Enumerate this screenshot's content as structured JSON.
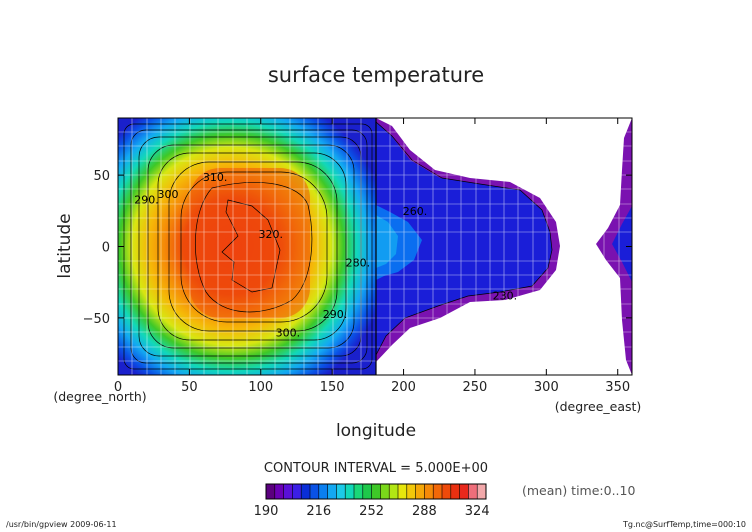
{
  "chart_data": {
    "type": "heatmap",
    "title": "surface temperature",
    "xlabel": "longitude",
    "ylabel": "latitude",
    "x_unit": "(degree_east)",
    "y_unit": "(degree_north)",
    "xlim": [
      0,
      360
    ],
    "ylim": [
      -90,
      90
    ],
    "x_ticks": [
      "0",
      "50",
      "100",
      "150",
      "200",
      "250",
      "300",
      "350"
    ],
    "y_ticks": [
      "50",
      "0",
      "−50"
    ],
    "grid": true,
    "contour_interval_label": "CONTOUR INTERVAL = 5.000E+00",
    "mean_label": "(mean) time:0..10",
    "footer_left": "/usr/bin/gpview   2009-06-11",
    "footer_right": "Tg.nc@SurfTemp,time=000:10",
    "colorbar": {
      "tick_labels": [
        "190",
        "216",
        "252",
        "288",
        "324"
      ],
      "colors": [
        "#5b007f",
        "#6a00b5",
        "#5a10d8",
        "#3b1fe6",
        "#0a2ed8",
        "#0a52e6",
        "#0a7ff0",
        "#13a8f2",
        "#1ccae8",
        "#12d8b8",
        "#1ad878",
        "#1ec84a",
        "#3ec828",
        "#7ad81a",
        "#b2e614",
        "#e6e60c",
        "#f2c80a",
        "#f5a808",
        "#f58a08",
        "#f26808",
        "#ee4a0a",
        "#ea3010",
        "#e8281c",
        "#ee6e7a",
        "#f2a8aa"
      ]
    },
    "contour_labels": [
      {
        "text": "310.",
        "lon": 68,
        "lat": 46
      },
      {
        "text": "300",
        "lon": 35,
        "lat": 34
      },
      {
        "text": "290.",
        "lon": 20,
        "lat": 30
      },
      {
        "text": "320.",
        "lon": 107,
        "lat": 6
      },
      {
        "text": "290.",
        "lon": 152,
        "lat": -50
      },
      {
        "text": "280.",
        "lon": 168,
        "lat": -14
      },
      {
        "text": "300.",
        "lon": 119,
        "lat": -63
      },
      {
        "text": "260.",
        "lon": 208,
        "lat": 22
      },
      {
        "text": "230.",
        "lon": 271,
        "lat": -37
      }
    ]
  }
}
